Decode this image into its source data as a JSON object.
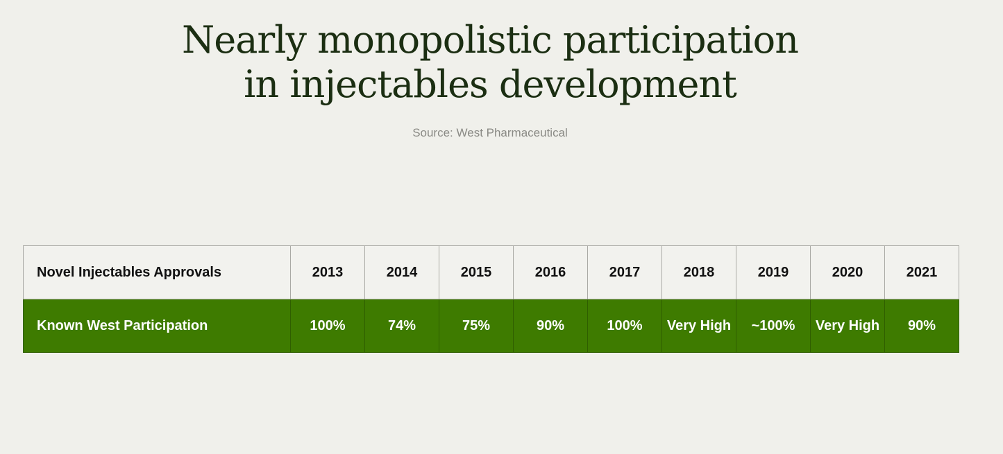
{
  "title_lines": [
    "Nearly monopolistic participation",
    "in injectables development"
  ],
  "source": "Source: West Pharmaceutical",
  "chart_data": {
    "type": "table",
    "title": "Nearly monopolistic participation in injectables development",
    "subtitle": "Source: West Pharmaceutical",
    "columns": [
      "Novel Injectables Approvals",
      "2013",
      "2014",
      "2015",
      "2016",
      "2017",
      "2018",
      "2019",
      "2020",
      "2021"
    ],
    "rows": [
      {
        "label": "Known West Participation",
        "values": [
          "100%",
          "74%",
          "75%",
          "90%",
          "100%",
          "Very High",
          "~100%",
          "Very High",
          "90%"
        ]
      }
    ]
  },
  "colors": {
    "background": "#f0f0eb",
    "title": "#1b2e12",
    "source": "#8a8a85",
    "header_row_bg": "#f2f2ee",
    "value_row_bg": "#3e7b00",
    "value_row_text": "#ffffff"
  }
}
